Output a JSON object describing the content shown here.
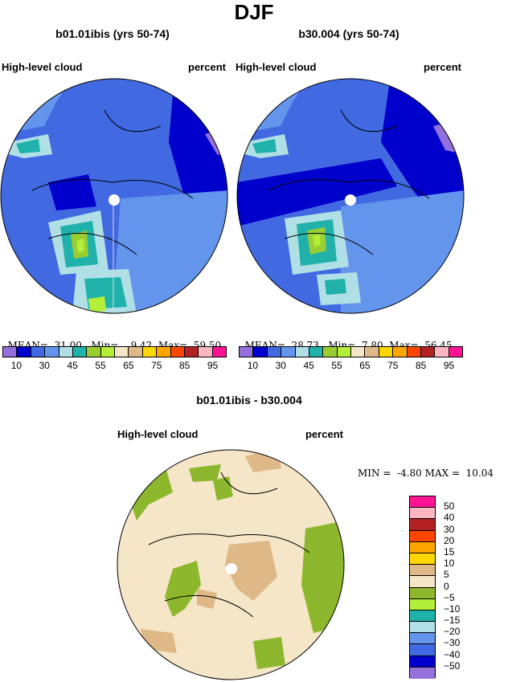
{
  "title": "DJF",
  "panels": [
    {
      "case": "b01.01ibis (yrs 50-74)",
      "variable": "High-level cloud",
      "units": "percent",
      "stats": {
        "mean_label": "MEAN=",
        "mean": "31.00",
        "min_label": "Min=",
        "min": "9.42",
        "max_label": "Max=",
        "max": "59.50"
      }
    },
    {
      "case": "b30.004 (yrs 50-74)",
      "variable": "High-level cloud",
      "units": "percent",
      "stats": {
        "mean_label": "MEAN=",
        "mean": "28.73",
        "min_label": "Min=",
        "min": "7.80",
        "max_label": "Max=",
        "max": "56.45"
      }
    }
  ],
  "colorbar": {
    "colors": [
      "#9370DB",
      "#0000CD",
      "#4169E1",
      "#6495ED",
      "#B0E0E6",
      "#20B2AA",
      "#9ACD32",
      "#B3EE3A",
      "#F5E6C8",
      "#DEB887",
      "#FFD700",
      "#FFA500",
      "#FF4500",
      "#B22222",
      "#FFB6C1",
      "#FF1493"
    ],
    "tick_labels": [
      "10",
      "30",
      "45",
      "55",
      "65",
      "75",
      "85",
      "95"
    ]
  },
  "diff_panel": {
    "case": "b01.01ibis - b30.004",
    "variable": "High-level cloud",
    "units": "percent",
    "min_label": "MIN =",
    "min": "-4.80",
    "max_label": "MAX =",
    "max": "10.04"
  },
  "diff_colorbar": {
    "colors": [
      "#FF1493",
      "#FFB6C1",
      "#B22222",
      "#FF4500",
      "#FFA500",
      "#FFD700",
      "#DEB887",
      "#F5E6C8",
      "#8DB82D",
      "#B3EE3A",
      "#20B2AA",
      "#B0E0E6",
      "#6495ED",
      "#4169E1",
      "#0000CD",
      "#9370DB"
    ],
    "tick_labels": [
      "50",
      "40",
      "30",
      "20",
      "15",
      "10",
      "5",
      "0",
      "−5",
      "−10",
      "−15",
      "−20",
      "−30",
      "−40",
      "−50"
    ]
  }
}
